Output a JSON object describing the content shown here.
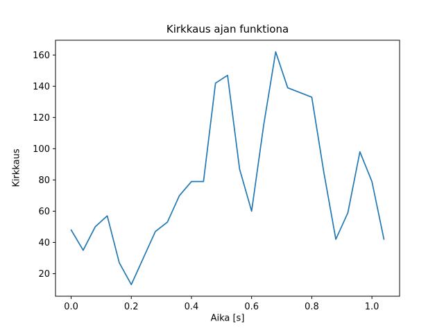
{
  "chart_data": {
    "type": "line",
    "title": "Kirkkaus ajan funktiona",
    "xlabel": "Aika [s]",
    "ylabel": "Kirkkaus",
    "x": [
      0.0,
      0.04,
      0.08,
      0.12,
      0.16,
      0.2,
      0.24,
      0.28,
      0.32,
      0.36,
      0.4,
      0.44,
      0.48,
      0.52,
      0.56,
      0.6,
      0.64,
      0.68,
      0.72,
      0.76,
      0.8,
      0.84,
      0.88,
      0.92,
      0.96,
      1.0,
      1.04
    ],
    "y": [
      48,
      35,
      50,
      57,
      27,
      13,
      30,
      47,
      53,
      70,
      79,
      79,
      142,
      147,
      87,
      60,
      115,
      162,
      139,
      136,
      133,
      85,
      42,
      59,
      98,
      79,
      42
    ],
    "xticks": [
      0.0,
      0.2,
      0.4,
      0.6,
      0.8,
      1.0
    ],
    "yticks": [
      20,
      40,
      60,
      80,
      100,
      120,
      140,
      160
    ],
    "xlim": [
      -0.052,
      1.092
    ],
    "ylim": [
      5.55,
      169.45
    ],
    "line_color": "#1f77b4",
    "axis_color": "#000000",
    "grid": false,
    "legend": "none"
  }
}
